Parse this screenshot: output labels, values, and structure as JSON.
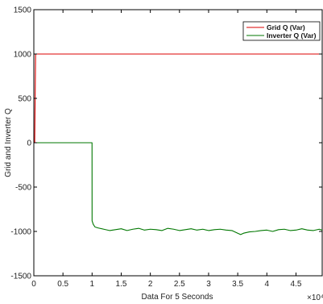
{
  "chart_data": {
    "type": "line",
    "xlabel": "Data For 5 Seconds",
    "ylabel": "Grid and Inverter Q",
    "xlim": [
      0,
      4.95
    ],
    "ylim": [
      -1500,
      1500
    ],
    "x_ticks": [
      0,
      0.5,
      1,
      1.5,
      2,
      2.5,
      3,
      3.5,
      4,
      4.5
    ],
    "x_tick_labels": [
      "0",
      "0.5",
      "1",
      "1.5",
      "2",
      "2.5",
      "3",
      "3.5",
      "4",
      "4.5"
    ],
    "y_ticks": [
      -1500,
      -1000,
      -500,
      0,
      500,
      1000,
      1500
    ],
    "y_tick_labels": [
      "-1500",
      "-1000",
      "-500",
      "0",
      "500",
      "1000",
      "1500"
    ],
    "x_multiplier": "×10⁴",
    "grid": false,
    "legend_position": "top-right",
    "series": [
      {
        "name": "Grid Q (Var)",
        "color": "#dd0000",
        "x": [
          0,
          0.015,
          0.03,
          0.05,
          4.95
        ],
        "y": [
          0,
          0,
          1000,
          1000,
          1000
        ]
      },
      {
        "name": "Inverter Q (Var)",
        "color": "#007700",
        "x": [
          0,
          0.999,
          1.0,
          1.02,
          1.05,
          1.1,
          1.2,
          1.3,
          1.4,
          1.5,
          1.6,
          1.7,
          1.8,
          1.9,
          2.0,
          2.1,
          2.2,
          2.3,
          2.4,
          2.5,
          2.6,
          2.7,
          2.8,
          2.9,
          3.0,
          3.1,
          3.2,
          3.3,
          3.4,
          3.5,
          3.55,
          3.6,
          3.7,
          3.8,
          3.9,
          4.0,
          4.1,
          4.2,
          4.3,
          4.4,
          4.5,
          4.6,
          4.7,
          4.8,
          4.9,
          4.95
        ],
        "y": [
          0,
          0,
          -880,
          -920,
          -950,
          -960,
          -975,
          -990,
          -980,
          -970,
          -990,
          -975,
          -965,
          -985,
          -975,
          -980,
          -990,
          -965,
          -975,
          -990,
          -980,
          -970,
          -985,
          -975,
          -990,
          -980,
          -975,
          -985,
          -990,
          -1020,
          -1035,
          -1020,
          -1005,
          -1000,
          -990,
          -985,
          -1000,
          -980,
          -975,
          -990,
          -985,
          -970,
          -985,
          -990,
          -975,
          -985
        ]
      }
    ]
  }
}
